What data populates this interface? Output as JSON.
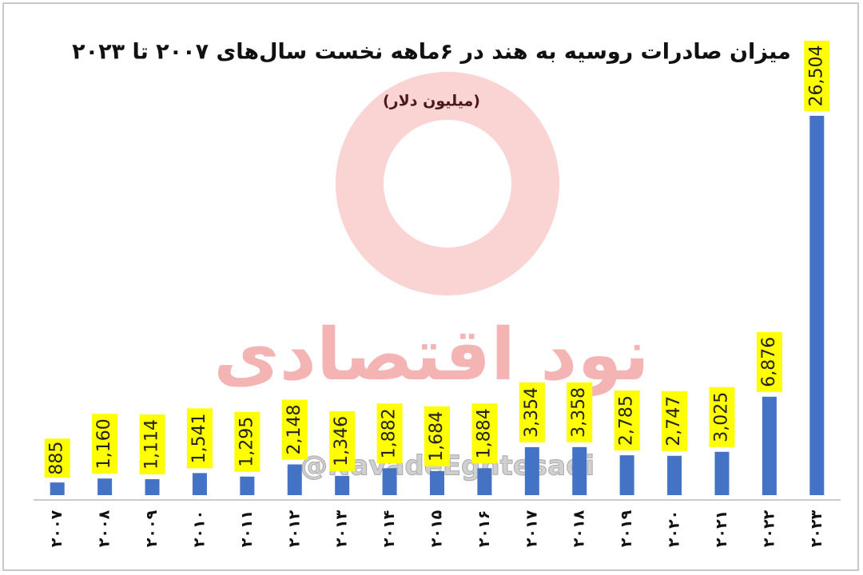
{
  "chart_data": {
    "type": "bar",
    "title": "میزان صادرات روسیه به هند در ۶ماهه نخست سال‌های ۲۰۰۷ تا ۲۰۲۳",
    "subtitle": "(میلیون دلار)",
    "watermark": "نود اقتصادی",
    "handle": "@NavadeEghtesadi",
    "categories": [
      "۲۰۰۷",
      "۲۰۰۸",
      "۲۰۰۹",
      "۲۰۱۰",
      "۲۰۱۱",
      "۲۰۱۲",
      "۲۰۱۳",
      "۲۰۱۴",
      "۲۰۱۵",
      "۲۰۱۶",
      "۲۰۱۷",
      "۲۰۱۸",
      "۲۰۱۹",
      "۲۰۲۰",
      "۲۰۲۱",
      "۲۰۲۲",
      "۲۰۲۳"
    ],
    "values": [
      885,
      1160,
      1114,
      1541,
      1295,
      2148,
      1346,
      1882,
      1684,
      1884,
      3354,
      3358,
      2785,
      2747,
      3025,
      6876,
      26504
    ],
    "value_labels": [
      "885",
      "1,160",
      "1,114",
      "1,541",
      "1,295",
      "2,148",
      "1,346",
      "1,882",
      "1,684",
      "1,884",
      "3,354",
      "3,358",
      "2,785",
      "2,747",
      "3,025",
      "6,876",
      "26,504"
    ],
    "color": "#4472c4",
    "label_color": "#ffff00"
  }
}
